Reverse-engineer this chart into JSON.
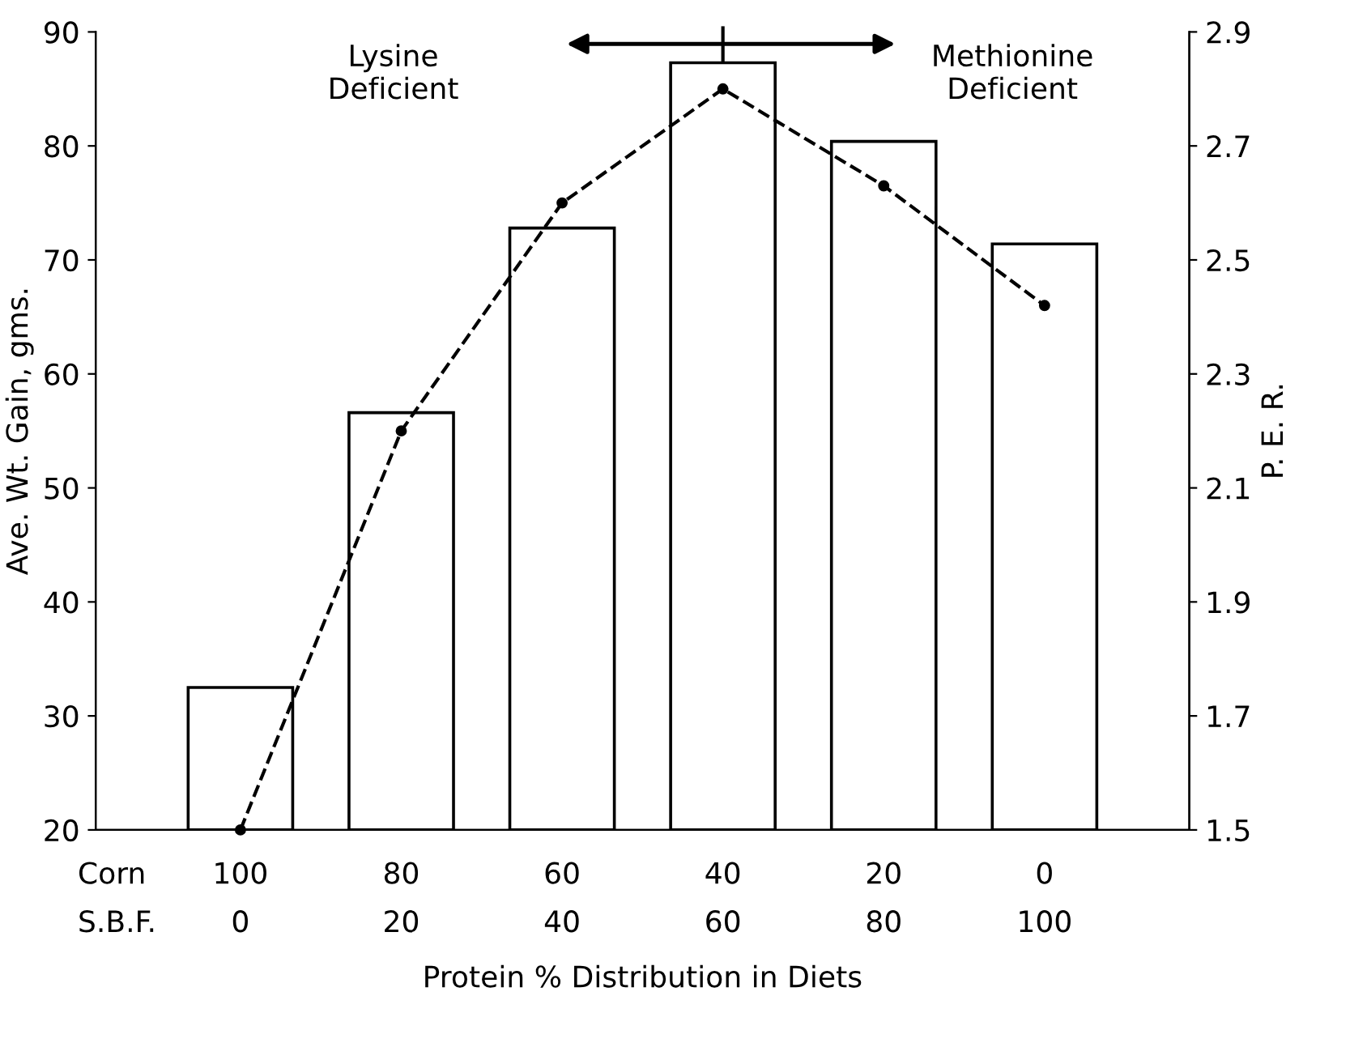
{
  "chart_data": {
    "type": "bar",
    "xlabel": "Protein % Distribution in Diets",
    "ylabel": "Ave. Wt. Gain, gms.",
    "y2label": "P. E. R.",
    "categories": [
      "100\n0",
      "80\n20",
      "60\n40",
      "40\n60",
      "20\n80",
      "0\n100"
    ],
    "series": [
      {
        "color": "#ffffff",
        "values": [
          32.5,
          56.6,
          72.8,
          87.3,
          80.4,
          71.4
        ]
      },
      {
        "type": "line",
        "axis": "y2",
        "color": "#000000",
        "marker": "circle",
        "line_style": "dashed",
        "values": [
          1.5,
          2.2,
          2.6,
          2.8,
          2.63,
          2.42
        ]
      }
    ],
    "ylim": [
      20,
      90
    ],
    "yticks": [
      20,
      30,
      40,
      50,
      60,
      70,
      80,
      90
    ],
    "y2lim": [
      1.5,
      2.9
    ],
    "y2ticks": [
      1.5,
      1.7,
      1.9,
      2.1,
      2.3,
      2.5,
      2.7,
      2.9
    ],
    "annotations": [
      "Corn\nS.B.F.",
      "Lysine\nDeficient",
      "Methionine\nDeficient"
    ],
    "grid": false,
    "legend": false
  }
}
